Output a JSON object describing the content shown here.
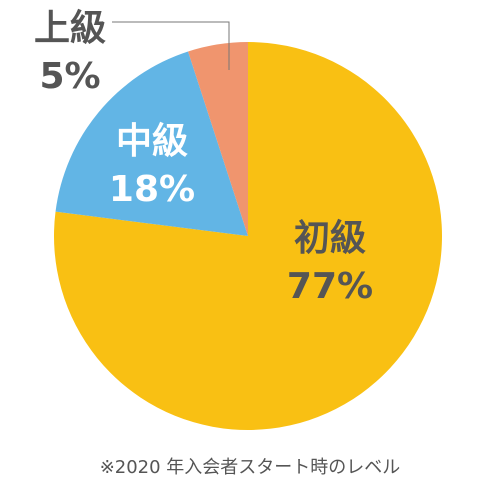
{
  "chart_data": {
    "type": "pie",
    "categories": [
      "初級",
      "中級",
      "上級"
    ],
    "values": [
      77,
      18,
      5
    ],
    "value_labels": [
      "77%",
      "18%",
      "5%"
    ],
    "colors": [
      "#f9c013",
      "#62b5e5",
      "#f0956e"
    ],
    "note": "※2020 年入会者スタート時のレベル"
  }
}
